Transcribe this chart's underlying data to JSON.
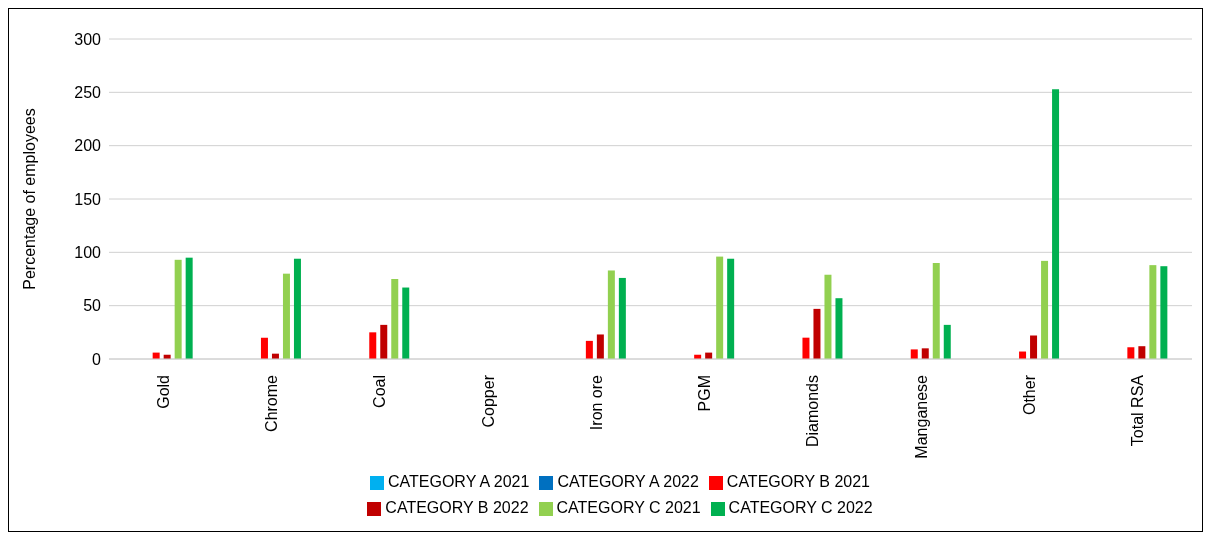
{
  "chart_data": {
    "type": "bar",
    "ylabel": "Percentage of employees",
    "categories": [
      "Gold",
      "Chrome",
      "Coal",
      "Copper",
      "Iron ore",
      "PGM",
      "Diamonds",
      "Manganese",
      "Other",
      "Total RSA"
    ],
    "series": [
      {
        "name": "CATEGORY A 2021",
        "color": "#00b0f0",
        "values": [
          0,
          0,
          0,
          0,
          0,
          0,
          0,
          0,
          0,
          0
        ]
      },
      {
        "name": "CATEGORY A 2022",
        "color": "#0070c0",
        "values": [
          0,
          0,
          0,
          0,
          0,
          0,
          0,
          0,
          0,
          0
        ]
      },
      {
        "name": "CATEGORY B 2021",
        "color": "#ff0000",
        "values": [
          6,
          20,
          25,
          0,
          17,
          4,
          20,
          9,
          7,
          11
        ]
      },
      {
        "name": "CATEGORY B 2022",
        "color": "#c00000",
        "values": [
          4,
          5,
          32,
          0,
          23,
          6,
          47,
          10,
          22,
          12
        ]
      },
      {
        "name": "CATEGORY C 2021",
        "color": "#92d050",
        "values": [
          93,
          80,
          75,
          0,
          83,
          96,
          79,
          90,
          92,
          88
        ]
      },
      {
        "name": "CATEGORY C 2022",
        "color": "#00b050",
        "values": [
          95,
          94,
          67,
          0,
          76,
          94,
          57,
          32,
          253,
          87
        ]
      }
    ],
    "ylim": [
      0,
      300
    ],
    "yticks": [
      0,
      50,
      100,
      150,
      200,
      250,
      300
    ],
    "grid": "y",
    "legend": "bottom"
  }
}
